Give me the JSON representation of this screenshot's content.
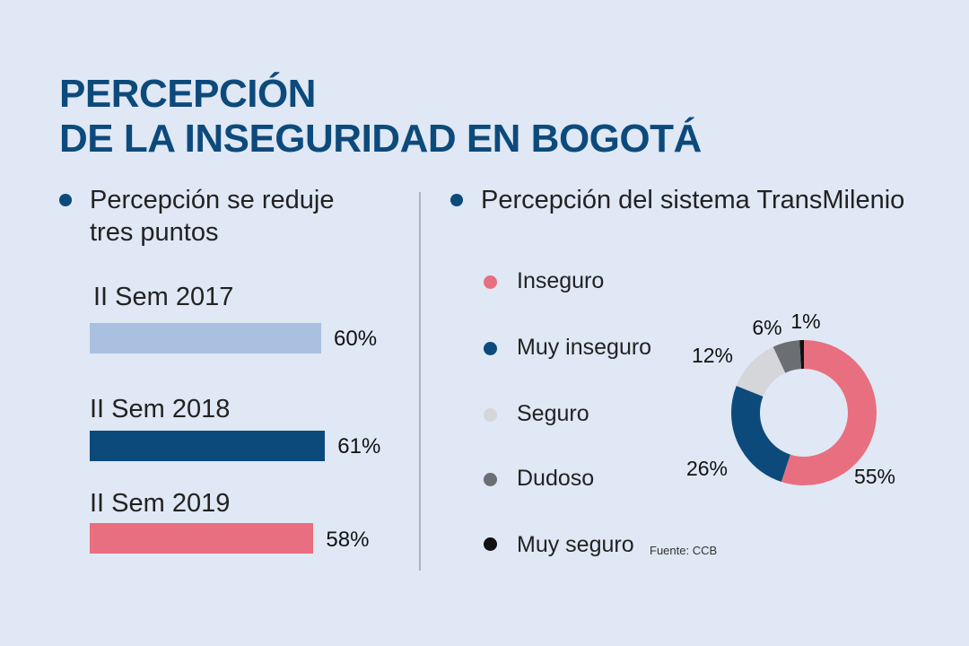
{
  "title": {
    "line1": "PERCEPCIÓN",
    "line2": "DE LA INSEGURIDAD EN BOGOTÁ"
  },
  "left_section": {
    "heading_line1": "Percepción se reduje",
    "heading_line2": "tres puntos"
  },
  "right_section": {
    "heading": "Percepción del sistema TransMilenio"
  },
  "source": "Fuente: CCB",
  "colors": {
    "accent": "#0d4a7c",
    "bar_2017": "#a9c0e0",
    "bar_2018": "#0d4a7c",
    "bar_2019": "#e86f7f",
    "inseguro": "#e86f7f",
    "muy_inseguro": "#0d4a7c",
    "seguro": "#d4d6da",
    "dudoso": "#6b6e72",
    "muy_seguro": "#111111"
  },
  "chart_data": [
    {
      "type": "bar",
      "orientation": "horizontal",
      "categories": [
        "II Sem 2017",
        "II Sem 2018",
        "II Sem 2019"
      ],
      "values": [
        60,
        61,
        58
      ],
      "value_labels": [
        "60%",
        "61%",
        "58%"
      ],
      "colors": [
        "#a9c0e0",
        "#0d4a7c",
        "#e86f7f"
      ]
    },
    {
      "type": "pie",
      "variant": "donut",
      "categories": [
        "Inseguro",
        "Muy inseguro",
        "Seguro",
        "Dudoso",
        "Muy seguro"
      ],
      "values": [
        55,
        26,
        12,
        6,
        1
      ],
      "value_labels": [
        "55%",
        "26%",
        "12%",
        "6%",
        "1%"
      ],
      "colors": [
        "#e86f7f",
        "#0d4a7c",
        "#d4d6da",
        "#6b6e72",
        "#111111"
      ],
      "legend": "left"
    }
  ]
}
